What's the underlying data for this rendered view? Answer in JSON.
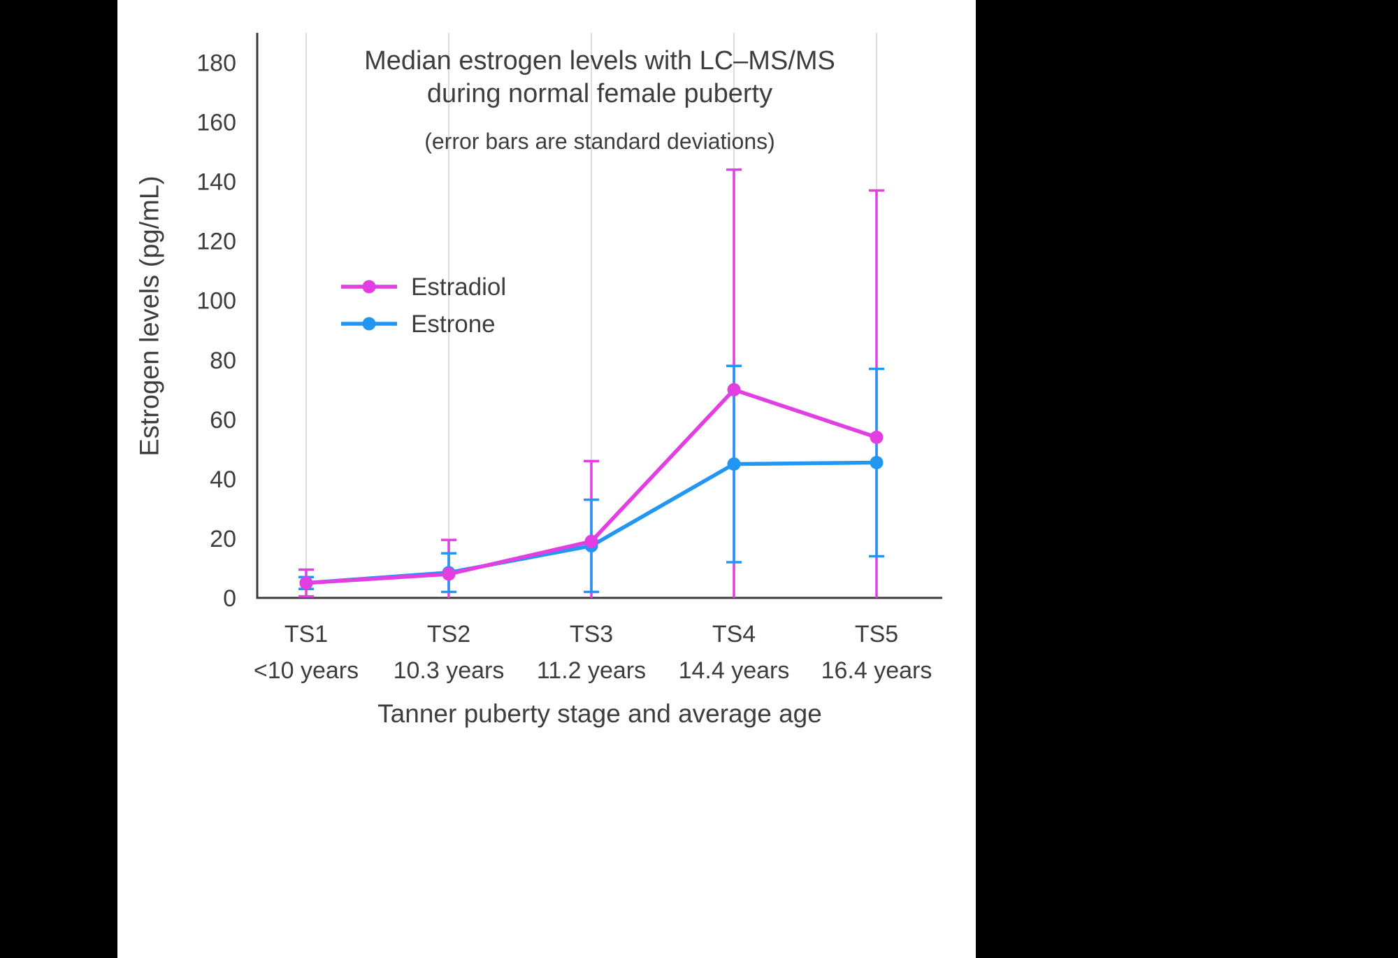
{
  "page": {
    "background": "#000000",
    "panel_background": "#ffffff"
  },
  "chart_data": {
    "type": "line",
    "title": "Median estrogen levels with LC–MS/MS",
    "title_line2": "during normal female puberty",
    "subtitle": "(error bars are standard deviations)",
    "xlabel": "Tanner puberty stage and average age",
    "ylabel": "Estrogen levels (pg/mL)",
    "ylim": [
      0,
      190
    ],
    "yticks": [
      0,
      20,
      40,
      60,
      80,
      100,
      120,
      140,
      160,
      180
    ],
    "categories": [
      "TS1",
      "TS2",
      "TS3",
      "TS4",
      "TS5"
    ],
    "category_ages": [
      "<10 years",
      "10.3 years",
      "11.2 years",
      "14.4 years",
      "16.4 years"
    ],
    "grid": "vertical",
    "legend_position": "inside-upper-left",
    "error_bars": "standard deviations",
    "series": [
      {
        "name": "Estradiol",
        "color": "#e23ee2",
        "values": [
          5,
          8,
          19,
          70,
          54
        ],
        "sd": [
          4.5,
          11.5,
          27,
          74,
          83
        ]
      },
      {
        "name": "Estrone",
        "color": "#2196f3",
        "values": [
          5,
          8.5,
          17.5,
          45,
          45.5
        ],
        "sd": [
          2,
          6.5,
          15.5,
          33,
          31.5
        ]
      }
    ],
    "axis_color": "#3a3a3a",
    "grid_color": "#dcdcdc",
    "text_color": "#3d3d3d"
  }
}
